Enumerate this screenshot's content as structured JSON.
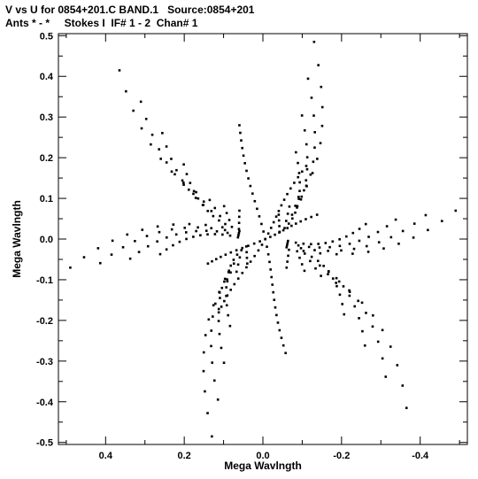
{
  "header": {
    "line1": "V vs U for 0854+201.C BAND.1   Source:0854+201",
    "line2": "Ants * - *     Stokes I  IF# 1 - 2  Chan# 1"
  },
  "chart_data": {
    "type": "scatter",
    "title": "V vs U for 0854+201.C BAND.1   Source:0854+201",
    "subtitle": "Ants * - *     Stokes I  IF# 1 - 2  Chan# 1",
    "xlabel": "Mega Wavlngth",
    "ylabel": "Mega Wavlngth",
    "xlim": [
      0.52,
      -0.52
    ],
    "ylim": [
      -0.505,
      0.505
    ],
    "x_ticks": [
      0.4,
      0.2,
      0.0,
      -0.2,
      -0.4
    ],
    "x_tick_labels": [
      "0.4",
      "0.2",
      "0.0",
      "-0.2",
      "-0.4"
    ],
    "y_ticks": [
      0.5,
      0.4,
      0.3,
      0.2,
      0.1,
      0.0,
      -0.1,
      -0.2,
      -0.3,
      -0.4,
      -0.5
    ],
    "y_tick_labels": [
      "0.5",
      "0.4",
      "0.3",
      "0.2",
      "0.1",
      "0.0",
      "-0.1",
      "-0.2",
      "-0.3",
      "-0.4",
      "-0.5"
    ],
    "grid": false,
    "marker_color": "#000000",
    "arms": [
      {
        "end": [
          0.365,
          0.415
        ],
        "bend": [
          0.28,
          0.12
        ],
        "base": [
          0.06,
          0.07
        ],
        "steps": 11
      },
      {
        "end": [
          0.49,
          -0.07
        ],
        "bend": [
          0.3,
          0.08
        ],
        "base": [
          0.06,
          0.02
        ],
        "steps": 11
      },
      {
        "end": [
          0.13,
          -0.485
        ],
        "bend": [
          0.2,
          -0.16
        ],
        "base": [
          0.04,
          -0.06
        ],
        "steps": 11
      },
      {
        "end": [
          -0.365,
          -0.415
        ],
        "bend": [
          -0.32,
          -0.1
        ],
        "base": [
          -0.06,
          -0.07
        ],
        "steps": 11
      },
      {
        "end": [
          -0.49,
          0.07
        ],
        "bend": [
          -0.3,
          -0.08
        ],
        "base": [
          -0.06,
          -0.02
        ],
        "steps": 11
      },
      {
        "end": [
          -0.13,
          0.485
        ],
        "bend": [
          -0.2,
          0.16
        ],
        "base": [
          -0.04,
          0.06
        ],
        "steps": 11
      }
    ],
    "spokes": [
      {
        "from": [
          0.06,
          0.28
        ],
        "to": [
          -0.06,
          -0.28
        ],
        "steps": 30
      },
      {
        "from": [
          -0.11,
          0.18
        ],
        "to": [
          0.11,
          -0.18
        ],
        "steps": 26
      },
      {
        "from": [
          0.14,
          -0.06
        ],
        "to": [
          -0.14,
          0.06
        ],
        "steps": 22
      }
    ]
  }
}
